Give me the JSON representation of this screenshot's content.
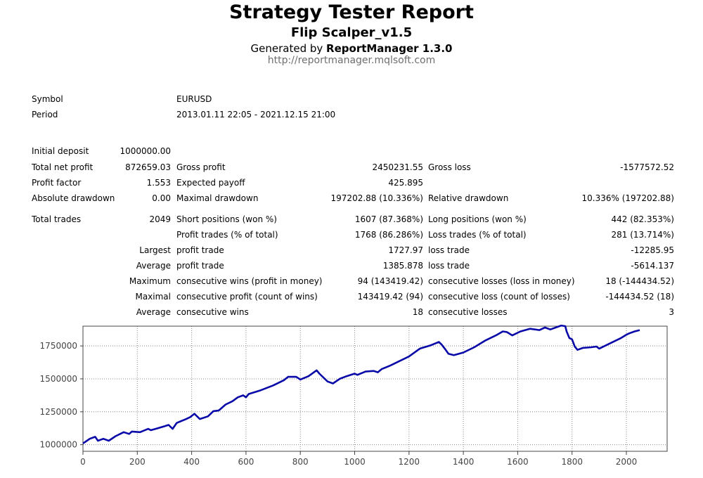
{
  "header": {
    "title": "Strategy Tester Report",
    "subtitle": "Flip Scalper_v1.5",
    "generated_prefix": "Generated by",
    "generated_tool": "ReportManager 1.3.0",
    "url": "http://reportmanager.mqlsoft.com"
  },
  "summary": {
    "symbol_label": "Symbol",
    "symbol": "EURUSD",
    "period_label": "Period",
    "period": "2013.01.11 22:05 - 2021.12.15 21:00"
  },
  "stats": {
    "initial_deposit_label": "Initial deposit",
    "initial_deposit": "1000000.00",
    "total_net_profit_label": "Total net profit",
    "total_net_profit": "872659.03",
    "gross_profit_label": "Gross profit",
    "gross_profit": "2450231.55",
    "gross_loss_label": "Gross loss",
    "gross_loss": "-1577572.52",
    "profit_factor_label": "Profit factor",
    "profit_factor": "1.553",
    "expected_payoff_label": "Expected payoff",
    "expected_payoff": "425.895",
    "absolute_drawdown_label": "Absolute drawdown",
    "absolute_drawdown": "0.00",
    "maximal_drawdown_label": "Maximal drawdown",
    "maximal_drawdown": "197202.88 (10.336%)",
    "relative_drawdown_label": "Relative drawdown",
    "relative_drawdown": "10.336% (197202.88)",
    "total_trades_label": "Total trades",
    "total_trades": "2049",
    "short_positions_label": "Short positions (won %)",
    "short_positions": "1607 (87.368%)",
    "long_positions_label": "Long positions (won %)",
    "long_positions": "442 (82.353%)",
    "profit_trades_label": "Profit trades (% of total)",
    "profit_trades": "1768 (86.286%)",
    "loss_trades_label": "Loss trades (% of total)",
    "loss_trades": "281 (13.714%)",
    "largest_label": "Largest",
    "largest_profit_label": "profit trade",
    "largest_profit": "1727.97",
    "largest_loss_label": "loss trade",
    "largest_loss": "-12285.95",
    "average_label": "Average",
    "average_profit_label": "profit trade",
    "average_profit": "1385.878",
    "average_loss_label": "loss trade",
    "average_loss": "-5614.137",
    "maximum_label": "Maximum",
    "max_consec_wins_label": "consecutive wins (profit in money)",
    "max_consec_wins": "94 (143419.42)",
    "max_consec_losses_label": "consecutive losses (loss in money)",
    "max_consec_losses": "18 (-144434.52)",
    "maximal_label": "Maximal",
    "maximal_consec_profit_label": "consecutive profit (count of wins)",
    "maximal_consec_profit": "143419.42 (94)",
    "maximal_consec_loss_label": "consecutive loss (count of losses)",
    "maximal_consec_loss": "-144434.52 (18)",
    "avg_label": "Average",
    "avg_consec_wins_label": "consecutive wins",
    "avg_consec_wins": "18",
    "avg_consec_losses_label": "consecutive losses",
    "avg_consec_losses": "3"
  },
  "chart_data": {
    "type": "line",
    "xlim": [
      0,
      2150
    ],
    "ylim": [
      950000,
      1900000
    ],
    "x_ticks": [
      0,
      200,
      400,
      600,
      800,
      1000,
      1200,
      1400,
      1600,
      1800,
      2000
    ],
    "y_ticks": [
      1000000,
      1250000,
      1500000,
      1750000
    ],
    "grid": true,
    "line_color": "#0a0aa8",
    "series": [
      {
        "x": [
          0,
          25,
          45,
          55,
          75,
          95,
          120,
          150,
          170,
          180,
          210,
          240,
          250,
          275,
          300,
          315,
          330,
          345,
          380,
          395,
          410,
          430,
          460,
          480,
          500,
          525,
          550,
          570,
          590,
          600,
          610,
          650,
          700,
          740,
          755,
          785,
          800,
          830,
          860,
          870,
          900,
          920,
          945,
          970,
          1000,
          1010,
          1040,
          1070,
          1085,
          1100,
          1130,
          1160,
          1200,
          1240,
          1280,
          1310,
          1320,
          1335,
          1345,
          1365,
          1400,
          1440,
          1480,
          1520,
          1545,
          1560,
          1580,
          1610,
          1645,
          1680,
          1700,
          1720,
          1760,
          1775,
          1780,
          1790,
          1800,
          1810,
          1820,
          1840,
          1870,
          1890,
          1900,
          1940,
          1980,
          2000,
          2010,
          2030,
          2049
        ],
        "y": [
          1010000,
          1045000,
          1060000,
          1030000,
          1045000,
          1030000,
          1065000,
          1095000,
          1082000,
          1100000,
          1095000,
          1120000,
          1110000,
          1125000,
          1140000,
          1150000,
          1120000,
          1165000,
          1195000,
          1210000,
          1235000,
          1195000,
          1215000,
          1255000,
          1260000,
          1305000,
          1330000,
          1360000,
          1375000,
          1360000,
          1385000,
          1410000,
          1450000,
          1490000,
          1515000,
          1515000,
          1495000,
          1520000,
          1565000,
          1540000,
          1480000,
          1465000,
          1500000,
          1520000,
          1540000,
          1530000,
          1555000,
          1560000,
          1550000,
          1575000,
          1600000,
          1630000,
          1670000,
          1730000,
          1755000,
          1780000,
          1760000,
          1720000,
          1690000,
          1680000,
          1700000,
          1740000,
          1790000,
          1830000,
          1860000,
          1855000,
          1830000,
          1860000,
          1880000,
          1870000,
          1890000,
          1875000,
          1905000,
          1900000,
          1860000,
          1810000,
          1800000,
          1745000,
          1720000,
          1735000,
          1740000,
          1745000,
          1730000,
          1770000,
          1810000,
          1835000,
          1845000,
          1860000,
          1870000
        ]
      }
    ]
  }
}
